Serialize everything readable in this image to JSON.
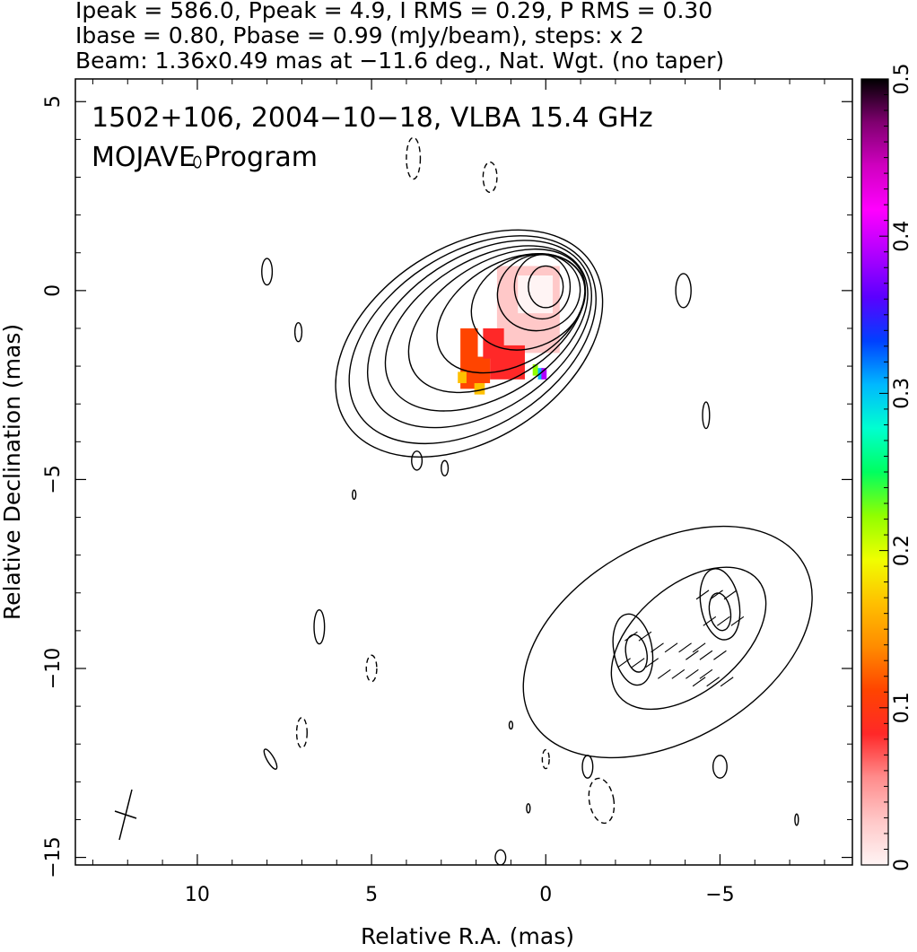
{
  "header": {
    "line1": "Ipeak = 586.0, Ppeak = 4.9, I RMS = 0.29, P RMS = 0.30",
    "line2": "Ibase = 0.80, Pbase = 0.99 (mJy/beam), steps: x 2",
    "line3": "Beam: 1.36x0.49 mas at −11.6 deg., Nat. Wgt. (no taper)"
  },
  "chart_data": {
    "type": "heatmap",
    "title": "1502+106, 2004−10−18, VLBA 15.4 GHz",
    "subtitle": "MOJAVE Program",
    "xlabel": "Relative R.A. (mas)",
    "ylabel": "Relative Declination (mas)",
    "xlim": [
      13.5,
      -8.8
    ],
    "ylim": [
      -15.2,
      5.6
    ],
    "x_ticks": [
      10,
      5,
      0,
      -5
    ],
    "x_tick_labels": [
      "10",
      "5",
      "0",
      "−5"
    ],
    "y_ticks": [
      5,
      0,
      -5,
      -10,
      -15
    ],
    "y_tick_labels": [
      "5",
      "0",
      "−5",
      "−10",
      "−15"
    ],
    "colorbar": {
      "range": [
        0,
        0.5
      ],
      "ticks": [
        0,
        0.1,
        0.2,
        0.3,
        0.4,
        0.5
      ],
      "tick_labels": [
        "0",
        "0.1",
        "0.2",
        "0.3",
        "0.4",
        "0.5"
      ],
      "colors": [
        "#fff4f4",
        "#ffc8c8",
        "#ff8c8c",
        "#ff2828",
        "#ff4400",
        "#ff8c00",
        "#ffc000",
        "#f0ff00",
        "#90ff00",
        "#00ff60",
        "#00ffd0",
        "#00b8ff",
        "#0040ff",
        "#5a00ff",
        "#b000ff",
        "#ff00ff",
        "#d000c0",
        "#800070",
        "#000000"
      ]
    },
    "contour_base_mJy_per_beam": 0.8,
    "contour_step_factor": 2,
    "peak_total_intensity_mJy_per_beam": 586.0,
    "peak_polarized_intensity_mJy_per_beam": 4.9,
    "core_contours": [
      {
        "cx": 0.0,
        "cy": 0.1,
        "rx": 0.5,
        "ry": 0.55,
        "rot": 0,
        "dx": 0.0,
        "dy": 0.0
      },
      {
        "cx": 0.1,
        "cy": 0.1,
        "rx": 0.8,
        "ry": 0.85,
        "rot": 0,
        "dx": 0.0,
        "dy": 0.0
      },
      {
        "cx": 0.2,
        "cy": -0.05,
        "rx": 1.2,
        "ry": 1.0,
        "rot": 20,
        "dx": 0.0,
        "dy": 0.0
      },
      {
        "cx": 0.5,
        "cy": -0.3,
        "rx": 1.7,
        "ry": 1.2,
        "rot": 25,
        "dx": 0.0,
        "dy": 0.0
      },
      {
        "cx": 1.0,
        "cy": -0.6,
        "rx": 2.3,
        "ry": 1.35,
        "rot": 30,
        "dx": 0.0,
        "dy": 0.0
      },
      {
        "cx": 1.4,
        "cy": -0.8,
        "rx": 2.8,
        "ry": 1.55,
        "rot": 32,
        "dx": 0.0,
        "dy": 0.0
      },
      {
        "cx": 1.7,
        "cy": -1.0,
        "rx": 3.2,
        "ry": 1.8,
        "rot": 32,
        "dx": 0.0,
        "dy": 0.0
      },
      {
        "cx": 1.9,
        "cy": -1.15,
        "rx": 3.55,
        "ry": 2.05,
        "rot": 33,
        "dx": 0.0,
        "dy": 0.0
      },
      {
        "cx": 2.1,
        "cy": -1.3,
        "rx": 3.9,
        "ry": 2.3,
        "rot": 33,
        "dx": 0.0,
        "dy": 0.0
      },
      {
        "cx": 2.2,
        "cy": -1.4,
        "rx": 4.2,
        "ry": 2.55,
        "rot": 33,
        "dx": 0.0,
        "dy": 0.0
      }
    ],
    "jet_contours": [
      {
        "cx": -3.5,
        "cy": -9.3,
        "rx": 4.5,
        "ry": 2.6,
        "rot": 30
      },
      {
        "cx": -4.1,
        "cy": -9.2,
        "rx": 2.6,
        "ry": 1.4,
        "rot": 40
      },
      {
        "cx": -2.5,
        "cy": -9.5,
        "rx": 0.55,
        "ry": 0.95,
        "rot": 10
      },
      {
        "cx": -5.0,
        "cy": -8.3,
        "rx": 0.55,
        "ry": 0.95,
        "rot": 10
      },
      {
        "cx": -2.6,
        "cy": -9.6,
        "rx": 0.3,
        "ry": 0.5,
        "rot": 10
      },
      {
        "cx": -5.0,
        "cy": -8.5,
        "rx": 0.3,
        "ry": 0.5,
        "rot": 10
      }
    ],
    "noise_contours": [
      {
        "cx": 3.8,
        "cy": 3.5,
        "rx": 0.2,
        "ry": 0.55,
        "rot": 0,
        "dashed": true
      },
      {
        "cx": 1.6,
        "cy": 3.0,
        "rx": 0.2,
        "ry": 0.4,
        "rot": 0,
        "dashed": true
      },
      {
        "cx": 8.0,
        "cy": 0.5,
        "rx": 0.15,
        "ry": 0.35,
        "rot": 0,
        "dashed": false
      },
      {
        "cx": 7.1,
        "cy": -1.1,
        "rx": 0.1,
        "ry": 0.25,
        "rot": 0,
        "dashed": false
      },
      {
        "cx": -3.95,
        "cy": 0.0,
        "rx": 0.22,
        "ry": 0.45,
        "rot": 0,
        "dashed": false
      },
      {
        "cx": -4.6,
        "cy": -3.3,
        "rx": 0.1,
        "ry": 0.35,
        "rot": 0,
        "dashed": false
      },
      {
        "cx": 3.7,
        "cy": -4.5,
        "rx": 0.15,
        "ry": 0.25,
        "rot": 0,
        "dashed": false
      },
      {
        "cx": 2.9,
        "cy": -4.7,
        "rx": 0.1,
        "ry": 0.2,
        "rot": 0,
        "dashed": false
      },
      {
        "cx": 6.5,
        "cy": -8.9,
        "rx": 0.15,
        "ry": 0.45,
        "rot": 0,
        "dashed": false
      },
      {
        "cx": 5.0,
        "cy": -10.0,
        "rx": 0.15,
        "ry": 0.35,
        "rot": 0,
        "dashed": true
      },
      {
        "cx": 7.0,
        "cy": -11.7,
        "rx": 0.15,
        "ry": 0.4,
        "rot": 0,
        "dashed": true
      },
      {
        "cx": 7.9,
        "cy": -12.4,
        "rx": 0.1,
        "ry": 0.3,
        "rot": 30,
        "dashed": false
      },
      {
        "cx": -1.2,
        "cy": -12.6,
        "rx": 0.15,
        "ry": 0.3,
        "rot": 0,
        "dashed": false
      },
      {
        "cx": 0.0,
        "cy": -12.4,
        "rx": 0.1,
        "ry": 0.25,
        "rot": 0,
        "dashed": true
      },
      {
        "cx": -1.6,
        "cy": -13.5,
        "rx": 0.35,
        "ry": 0.6,
        "rot": 10,
        "dashed": true
      },
      {
        "cx": -5.0,
        "cy": -12.6,
        "rx": 0.2,
        "ry": 0.3,
        "rot": 0,
        "dashed": false
      },
      {
        "cx": 1.3,
        "cy": -15.0,
        "rx": 0.15,
        "ry": 0.2,
        "rot": 0,
        "dashed": false
      },
      {
        "cx": -7.2,
        "cy": -14.0,
        "rx": 0.05,
        "ry": 0.15,
        "rot": 0,
        "dashed": false
      },
      {
        "cx": 10.0,
        "cy": 3.4,
        "rx": 0.1,
        "ry": 0.15,
        "rot": 0,
        "dashed": false
      },
      {
        "cx": 0.5,
        "cy": -13.7,
        "rx": 0.05,
        "ry": 0.12,
        "rot": 0,
        "dashed": false
      },
      {
        "cx": 1.0,
        "cy": -11.5,
        "rx": 0.05,
        "ry": 0.1,
        "rot": 0,
        "dashed": false
      },
      {
        "cx": 5.5,
        "cy": -5.4,
        "rx": 0.05,
        "ry": 0.12,
        "rot": 0,
        "dashed": false
      }
    ],
    "polarization_fraction_patches": [
      {
        "x": 0.5,
        "y": -0.5,
        "w": 1.8,
        "h": 2.3,
        "value": 0.02
      },
      {
        "x": 0.3,
        "y": -0.1,
        "w": 1.0,
        "h": 1.0,
        "value": 0.0
      },
      {
        "x": 1.1,
        "y": -1.9,
        "w": 1.0,
        "h": 0.9,
        "value": 0.08
      },
      {
        "x": 1.9,
        "y": -2.1,
        "w": 0.6,
        "h": 0.7,
        "value": 0.12
      },
      {
        "x": 1.5,
        "y": -1.4,
        "w": 0.6,
        "h": 0.8,
        "value": 0.07
      },
      {
        "x": 2.2,
        "y": -1.8,
        "w": 0.5,
        "h": 1.6,
        "value": 0.1
      },
      {
        "x": 2.4,
        "y": -2.3,
        "w": 0.25,
        "h": 0.3,
        "value": 0.18
      },
      {
        "x": 1.9,
        "y": -2.6,
        "w": 0.3,
        "h": 0.3,
        "value": 0.16
      },
      {
        "x": 0.3,
        "y": -2.1,
        "w": 0.15,
        "h": 0.3,
        "value": 0.22
      },
      {
        "x": 0.15,
        "y": -2.2,
        "w": 0.15,
        "h": 0.3,
        "value": 0.3
      },
      {
        "x": 0.05,
        "y": -2.2,
        "w": 0.15,
        "h": 0.3,
        "value": 0.4
      }
    ],
    "ellipse_features": [
      {
        "cx": 1.4,
        "cy": -1.0,
        "rx": 0.8,
        "ry": 0.4,
        "rot": 45
      }
    ]
  }
}
